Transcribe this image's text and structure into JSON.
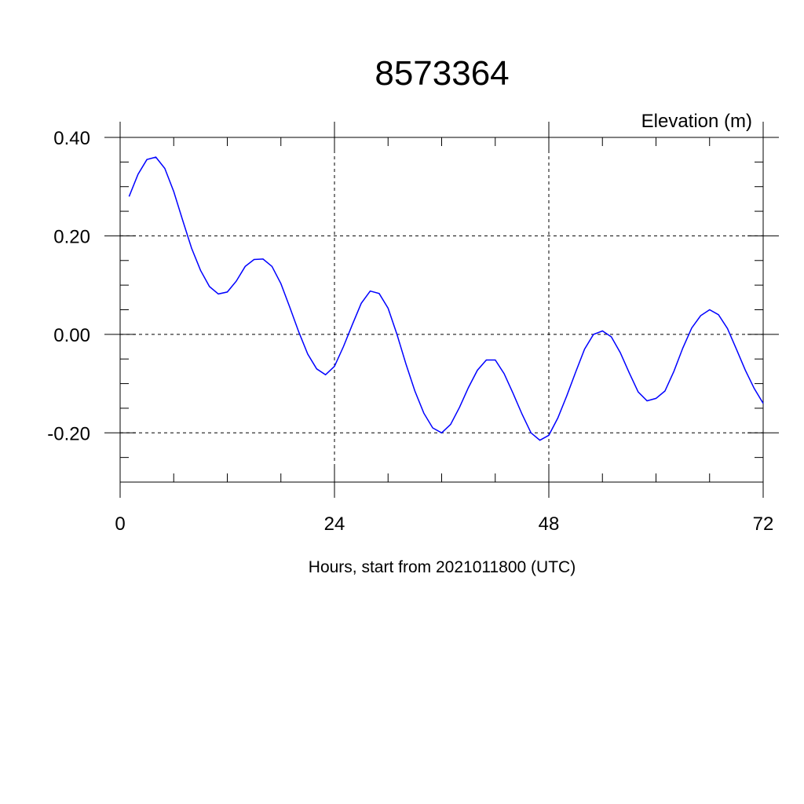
{
  "chart_data": {
    "type": "line",
    "title": "8573364",
    "ylabel": "Elevation (m)",
    "xlabel": "Hours, start from 2021011800 (UTC)",
    "xlim": [
      0,
      72
    ],
    "ylim": [
      -0.3,
      0.4
    ],
    "x_ticks": [
      0,
      24,
      48,
      72
    ],
    "x_tick_labels": [
      "0",
      "24",
      "48",
      "72"
    ],
    "y_ticks": [
      0.4,
      0.2,
      0.0,
      -0.2
    ],
    "y_tick_labels": [
      "0.40",
      "0.20",
      "0.00",
      "-0.20"
    ],
    "grid": true,
    "line_color": "#0000ff",
    "series": [
      {
        "x": [
          1,
          2,
          3,
          4,
          5,
          6,
          7,
          8,
          9,
          10,
          11,
          12,
          13,
          14,
          15,
          16,
          17,
          18,
          19,
          20,
          21,
          22,
          23,
          24,
          25,
          26,
          27,
          28,
          29,
          30,
          31,
          32,
          33,
          34,
          35,
          36,
          37,
          38,
          39,
          40,
          41,
          42,
          43,
          44,
          45,
          46,
          47,
          48,
          49,
          50,
          51,
          52,
          53,
          54,
          55,
          56,
          57,
          58,
          59,
          60,
          61,
          62,
          63,
          64,
          65,
          66,
          67,
          68,
          69,
          70,
          71,
          72
        ],
        "y": [
          0.28,
          0.325,
          0.355,
          0.36,
          0.337,
          0.29,
          0.232,
          0.175,
          0.13,
          0.097,
          0.082,
          0.086,
          0.108,
          0.138,
          0.152,
          0.153,
          0.138,
          0.103,
          0.055,
          0.005,
          -0.04,
          -0.07,
          -0.082,
          -0.065,
          -0.025,
          0.02,
          0.063,
          0.088,
          0.083,
          0.053,
          0.0,
          -0.06,
          -0.115,
          -0.16,
          -0.19,
          -0.2,
          -0.183,
          -0.148,
          -0.108,
          -0.073,
          -0.052,
          -0.052,
          -0.08,
          -0.12,
          -0.162,
          -0.2,
          -0.215,
          -0.205,
          -0.17,
          -0.125,
          -0.077,
          -0.03,
          0.0,
          0.007,
          -0.005,
          -0.037,
          -0.078,
          -0.117,
          -0.135,
          -0.13,
          -0.115,
          -0.075,
          -0.028,
          0.013,
          0.038,
          0.05,
          0.04,
          0.012,
          -0.03,
          -0.073,
          -0.11,
          -0.14
        ]
      }
    ]
  }
}
